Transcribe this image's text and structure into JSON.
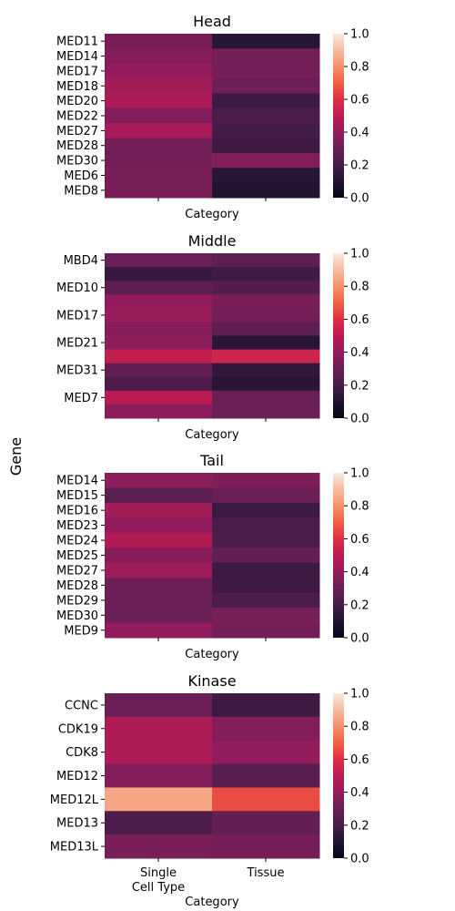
{
  "figure": {
    "ylabel": "Gene"
  },
  "chart_data": [
    {
      "type": "heatmap",
      "title": "Head",
      "xlabel": "Category",
      "x_tick_labels": [],
      "columns": [
        "Single Cell Type",
        "Tissue"
      ],
      "rows": [
        "MED11",
        "MED14",
        "MED17",
        "MED18",
        "MED20",
        "MED22",
        "MED27",
        "MED28",
        "MED30",
        "MED6",
        "MED8"
      ],
      "row_tick_labels": [
        "MED11",
        "MED14",
        "MED17",
        "MED18",
        "MED20",
        "MED22",
        "MED27",
        "MED28",
        "MED30",
        "MED6",
        "MED8"
      ],
      "values": [
        [
          0.34,
          0.12
        ],
        [
          0.37,
          0.33
        ],
        [
          0.4,
          0.33
        ],
        [
          0.44,
          0.31
        ],
        [
          0.46,
          0.18
        ],
        [
          0.36,
          0.22
        ],
        [
          0.45,
          0.2
        ],
        [
          0.32,
          0.18
        ],
        [
          0.33,
          0.36
        ],
        [
          0.34,
          0.12
        ],
        [
          0.34,
          0.1
        ]
      ],
      "colorbar": {
        "range": [
          0,
          1
        ],
        "ticks": [
          "0.0",
          "0.2",
          "0.4",
          "0.6",
          "0.8",
          "1.0"
        ]
      }
    },
    {
      "type": "heatmap",
      "title": "Middle",
      "xlabel": "Category",
      "x_tick_labels": [],
      "columns": [
        "Single Cell Type",
        "Tissue"
      ],
      "rows": [
        "MBD4",
        "",
        "MED10",
        "",
        "MED17",
        "",
        "MED21",
        "",
        "MED31",
        "",
        "MED7",
        ""
      ],
      "row_tick_labels": [
        "MBD4",
        "MED10",
        "MED17",
        "MED21",
        "MED31",
        "MED7"
      ],
      "values": [
        [
          0.3,
          0.27
        ],
        [
          0.16,
          0.19
        ],
        [
          0.27,
          0.24
        ],
        [
          0.4,
          0.34
        ],
        [
          0.42,
          0.33
        ],
        [
          0.37,
          0.27
        ],
        [
          0.38,
          0.12
        ],
        [
          0.52,
          0.55
        ],
        [
          0.28,
          0.15
        ],
        [
          0.22,
          0.12
        ],
        [
          0.5,
          0.3
        ],
        [
          0.38,
          0.3
        ]
      ],
      "colorbar": {
        "range": [
          0,
          1
        ],
        "ticks": [
          "0.0",
          "0.2",
          "0.4",
          "0.6",
          "0.8",
          "1.0"
        ]
      }
    },
    {
      "type": "heatmap",
      "title": "Tail",
      "xlabel": "Category",
      "x_tick_labels": [],
      "columns": [
        "Single Cell Type",
        "Tissue"
      ],
      "rows": [
        "MED14",
        "MED15",
        "MED16",
        "MED23",
        "MED24",
        "MED25",
        "MED27",
        "MED28",
        "MED29",
        "MED30",
        "MED9"
      ],
      "row_tick_labels": [
        "MED14",
        "MED15",
        "MED16",
        "MED23",
        "MED24",
        "MED25",
        "MED27",
        "MED28",
        "MED29",
        "MED30",
        "MED9"
      ],
      "values": [
        [
          0.38,
          0.35
        ],
        [
          0.26,
          0.3
        ],
        [
          0.44,
          0.17
        ],
        [
          0.4,
          0.22
        ],
        [
          0.48,
          0.22
        ],
        [
          0.37,
          0.28
        ],
        [
          0.43,
          0.18
        ],
        [
          0.31,
          0.18
        ],
        [
          0.3,
          0.22
        ],
        [
          0.3,
          0.34
        ],
        [
          0.4,
          0.33
        ]
      ],
      "colorbar": {
        "range": [
          0,
          1
        ],
        "ticks": [
          "0.0",
          "0.2",
          "0.4",
          "0.6",
          "0.8",
          "1.0"
        ]
      }
    },
    {
      "type": "heatmap",
      "title": "Kinase",
      "xlabel": "Category",
      "x_tick_labels": [
        "Single\nCell Type",
        "Tissue"
      ],
      "columns": [
        "Single Cell Type",
        "Tissue"
      ],
      "rows": [
        "CCNC",
        "CDK19",
        "CDK8",
        "MED12",
        "MED12L",
        "MED13",
        "MED13L"
      ],
      "row_tick_labels": [
        "CCNC",
        "CDK19",
        "CDK8",
        "MED12",
        "MED12L",
        "MED13",
        "MED13L"
      ],
      "values": [
        [
          0.3,
          0.18
        ],
        [
          0.47,
          0.36
        ],
        [
          0.47,
          0.4
        ],
        [
          0.36,
          0.25
        ],
        [
          0.85,
          0.66
        ],
        [
          0.22,
          0.28
        ],
        [
          0.34,
          0.33
        ]
      ],
      "colorbar": {
        "range": [
          0,
          1
        ],
        "ticks": [
          "0.0",
          "0.2",
          "0.4",
          "0.6",
          "0.8",
          "1.0"
        ]
      }
    }
  ]
}
